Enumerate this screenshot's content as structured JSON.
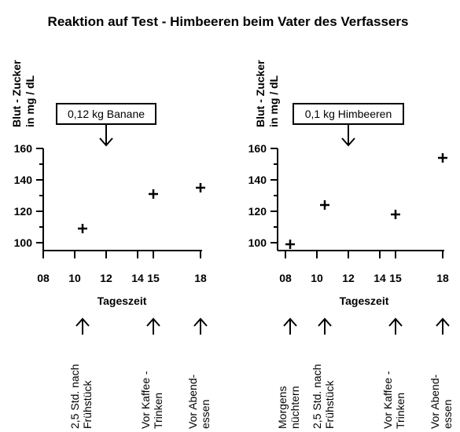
{
  "title": "Reaktion auf Test - Himbeeren beim Vater des Verfassers",
  "chart_data": [
    {
      "type": "scatter",
      "ylabel_lines": [
        "Blut - Zucker",
        "in mg / dL"
      ],
      "xlabel": "Tageszeit",
      "xlim": [
        8,
        18
      ],
      "ylim": [
        95,
        160
      ],
      "xticks": [
        8,
        10,
        12,
        14,
        15,
        18
      ],
      "xtick_labels": [
        "08",
        "10",
        "12",
        "14",
        "15",
        "18"
      ],
      "yticks": [
        100,
        120,
        140,
        160
      ],
      "yminor": [
        110,
        130,
        150
      ],
      "callout": {
        "text": "0,12 kg Banane",
        "x": 12
      },
      "points": [
        {
          "x": 10.5,
          "y": 109
        },
        {
          "x": 15,
          "y": 131
        },
        {
          "x": 18,
          "y": 135
        }
      ],
      "annotations": [
        {
          "x": 10.5,
          "lines": [
            "2,5 Std. nach",
            "Frühstück"
          ]
        },
        {
          "x": 15,
          "lines": [
            "Vor Kaffee -",
            "Trinken"
          ]
        },
        {
          "x": 18,
          "lines": [
            "Vor Abend-",
            "essen"
          ]
        }
      ]
    },
    {
      "type": "scatter",
      "ylabel_lines": [
        "Blut - Zucker",
        "in mg / dL"
      ],
      "xlabel": "Tageszeit",
      "xlim": [
        8,
        18
      ],
      "ylim": [
        95,
        160
      ],
      "xticks": [
        8,
        10,
        12,
        14,
        15,
        18
      ],
      "xtick_labels": [
        "08",
        "10",
        "12",
        "14",
        "15",
        "18"
      ],
      "yticks": [
        100,
        120,
        140,
        160
      ],
      "yminor": [
        110,
        130,
        150
      ],
      "callout": {
        "text": "0,1 kg Himbeeren",
        "x": 12
      },
      "points": [
        {
          "x": 8.3,
          "y": 99
        },
        {
          "x": 10.5,
          "y": 124
        },
        {
          "x": 15,
          "y": 118
        },
        {
          "x": 18,
          "y": 154
        }
      ],
      "annotations": [
        {
          "x": 8.3,
          "lines": [
            "Morgens",
            "nüchtern"
          ]
        },
        {
          "x": 10.5,
          "lines": [
            "2,5 Std. nach",
            "Frühstück"
          ]
        },
        {
          "x": 15,
          "lines": [
            "Vor Kaffee -",
            "Trinken"
          ]
        },
        {
          "x": 18,
          "lines": [
            "Vor Abend-",
            "essen"
          ]
        }
      ]
    }
  ]
}
